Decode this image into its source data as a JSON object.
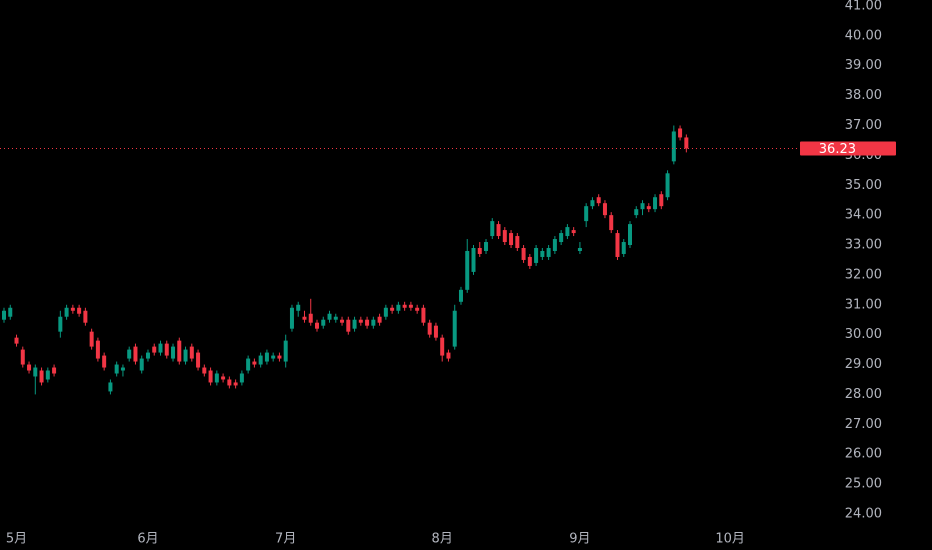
{
  "chart_data": {
    "type": "candlestick",
    "categories": [
      null,
      null,
      "5月",
      null,
      null,
      null,
      null,
      null,
      null,
      null,
      null,
      null,
      null,
      null,
      null,
      null,
      null,
      null,
      null,
      null,
      null,
      null,
      null,
      "6月",
      null,
      null,
      null,
      null,
      null,
      null,
      null,
      null,
      null,
      null,
      null,
      null,
      null,
      null,
      null,
      null,
      null,
      null,
      null,
      null,
      null,
      "7月",
      null,
      null,
      null,
      null,
      null,
      null,
      null,
      null,
      null,
      null,
      null,
      null,
      null,
      null,
      null,
      null,
      null,
      null,
      null,
      null,
      null,
      null,
      null,
      null,
      "8月",
      null,
      null,
      null,
      null,
      null,
      null,
      null,
      null,
      null,
      null,
      null,
      null,
      null,
      null,
      null,
      null,
      null,
      null,
      null,
      null,
      null,
      "9月",
      null,
      null,
      null,
      null,
      null,
      null,
      null,
      null,
      null,
      null,
      null,
      null,
      null,
      null,
      null,
      null,
      null,
      null,
      null,
      null,
      null,
      null,
      null,
      "10月",
      null,
      null,
      null,
      null,
      null,
      null,
      null,
      null,
      null
    ],
    "open": [
      30.5,
      30.6,
      29.9,
      29.5,
      29.0,
      28.6,
      28.8,
      28.5,
      28.9,
      30.1,
      30.6,
      30.9,
      30.9,
      30.8,
      30.1,
      29.8,
      29.3,
      28.1,
      28.7,
      28.8,
      29.2,
      29.6,
      28.8,
      29.2,
      29.6,
      29.4,
      29.7,
      29.2,
      29.8,
      29.1,
      29.6,
      29.4,
      28.9,
      28.8,
      28.4,
      28.6,
      28.5,
      28.4,
      28.4,
      28.8,
      29.1,
      29.0,
      29.1,
      29.2,
      29.3,
      29.1,
      30.2,
      30.8,
      30.6,
      30.7,
      30.4,
      30.3,
      30.5,
      30.5,
      30.5,
      30.5,
      30.2,
      30.5,
      30.5,
      30.3,
      30.6,
      30.6,
      30.9,
      30.8,
      31.0,
      31.0,
      30.9,
      30.9,
      30.4,
      30.3,
      29.9,
      29.4,
      29.6,
      31.1,
      31.5,
      32.1,
      32.9,
      32.8,
      33.3,
      33.7,
      33.5,
      33.4,
      33.3,
      32.9,
      32.6,
      32.4,
      32.6,
      32.6,
      32.8,
      33.1,
      33.3,
      33.5,
      32.8,
      33.8,
      34.3,
      34.6,
      34.4,
      34.0,
      33.4,
      32.7,
      33.0,
      34.0,
      34.2,
      34.3,
      34.2,
      34.7,
      34.6,
      35.8,
      36.9,
      36.6,
      null,
      null,
      null,
      null,
      null,
      null,
      null,
      null,
      null,
      null,
      null,
      null,
      null,
      null,
      null,
      null
    ],
    "high": [
      30.9,
      31.0,
      30.0,
      29.6,
      29.1,
      29.0,
      28.9,
      28.9,
      29.0,
      30.8,
      31.0,
      31.0,
      31.0,
      30.9,
      30.2,
      29.9,
      29.4,
      28.5,
      29.1,
      29.0,
      29.6,
      29.7,
      29.3,
      29.5,
      29.7,
      29.8,
      29.8,
      29.7,
      29.9,
      29.6,
      29.7,
      29.5,
      29.0,
      28.9,
      28.8,
      28.7,
      28.6,
      28.5,
      28.8,
      29.3,
      29.2,
      29.4,
      29.5,
      29.4,
      29.4,
      30.0,
      31.0,
      31.1,
      30.8,
      31.2,
      30.5,
      30.6,
      30.8,
      30.7,
      30.6,
      30.6,
      30.6,
      30.6,
      30.6,
      30.6,
      30.7,
      31.0,
      31.0,
      31.1,
      31.1,
      31.1,
      31.0,
      31.0,
      30.5,
      30.4,
      30.0,
      29.5,
      31.0,
      31.6,
      33.2,
      33.0,
      33.1,
      33.2,
      33.9,
      33.8,
      33.6,
      33.5,
      33.4,
      33.0,
      32.7,
      33.0,
      32.9,
      33.0,
      33.3,
      33.5,
      33.7,
      33.6,
      33.1,
      34.4,
      34.6,
      34.7,
      34.5,
      34.1,
      33.5,
      33.2,
      33.8,
      34.3,
      34.5,
      34.4,
      34.7,
      34.8,
      35.5,
      37.0,
      37.0,
      36.7,
      null,
      null,
      null,
      null,
      null,
      null,
      null,
      null,
      null,
      null,
      null,
      null,
      null,
      null,
      null,
      null
    ],
    "low": [
      30.4,
      30.5,
      29.6,
      28.9,
      28.7,
      28.0,
      28.3,
      28.4,
      28.6,
      29.9,
      30.5,
      30.7,
      30.6,
      30.3,
      29.5,
      29.1,
      28.8,
      28.0,
      28.6,
      28.6,
      29.1,
      29.0,
      28.7,
      29.1,
      29.3,
      29.3,
      29.2,
      29.1,
      29.0,
      29.0,
      29.1,
      28.8,
      28.6,
      28.3,
      28.3,
      28.4,
      28.2,
      28.2,
      28.3,
      28.7,
      28.9,
      28.9,
      29.0,
      29.1,
      29.1,
      28.9,
      30.1,
      30.6,
      30.4,
      30.3,
      30.1,
      30.2,
      30.4,
      30.4,
      30.3,
      30.0,
      30.1,
      30.3,
      30.2,
      30.2,
      30.3,
      30.5,
      30.7,
      30.7,
      30.8,
      30.8,
      30.7,
      30.3,
      29.9,
      29.8,
      29.1,
      29.1,
      29.5,
      31.0,
      31.4,
      32.0,
      32.6,
      32.7,
      33.2,
      33.2,
      33.0,
      32.9,
      32.8,
      32.4,
      32.2,
      32.3,
      32.5,
      32.5,
      32.7,
      33.0,
      33.2,
      33.3,
      32.7,
      33.6,
      34.2,
      34.3,
      33.9,
      33.4,
      32.5,
      32.6,
      32.9,
      33.9,
      34.0,
      34.1,
      34.1,
      34.2,
      34.5,
      35.7,
      36.5,
      36.1,
      null,
      null,
      null,
      null,
      null,
      null,
      null,
      null,
      null,
      null,
      null,
      null,
      null,
      null,
      null,
      null
    ],
    "close": [
      30.8,
      30.9,
      29.7,
      29.0,
      28.8,
      28.9,
      28.4,
      28.8,
      28.7,
      30.6,
      30.9,
      30.8,
      30.7,
      30.4,
      29.6,
      29.2,
      28.9,
      28.4,
      29.0,
      28.9,
      29.5,
      29.1,
      29.2,
      29.4,
      29.4,
      29.7,
      29.3,
      29.6,
      29.1,
      29.5,
      29.2,
      28.9,
      28.7,
      28.4,
      28.7,
      28.5,
      28.3,
      28.3,
      28.7,
      29.2,
      29.0,
      29.3,
      29.4,
      29.3,
      29.2,
      29.8,
      30.9,
      31.0,
      30.5,
      30.4,
      30.2,
      30.5,
      30.7,
      30.6,
      30.4,
      30.1,
      30.5,
      30.4,
      30.3,
      30.5,
      30.4,
      30.9,
      30.8,
      31.0,
      30.9,
      30.9,
      30.8,
      30.4,
      30.0,
      29.9,
      29.3,
      29.2,
      30.8,
      31.5,
      32.8,
      32.9,
      32.7,
      33.1,
      33.8,
      33.3,
      33.1,
      33.0,
      32.9,
      32.5,
      32.3,
      32.9,
      32.8,
      32.9,
      33.2,
      33.4,
      33.6,
      33.4,
      32.9,
      34.3,
      34.5,
      34.4,
      34.0,
      33.5,
      32.6,
      33.1,
      33.7,
      34.2,
      34.4,
      34.2,
      34.6,
      34.3,
      35.4,
      36.8,
      36.6,
      36.23,
      null,
      null,
      null,
      null,
      null,
      null,
      null,
      null,
      null,
      null,
      null,
      null,
      null,
      null,
      null,
      null
    ],
    "up_color": "#089981",
    "down_color": "#f23645",
    "ylim": [
      23.73,
      41.2
    ],
    "yticks": [
      {
        "value": 24,
        "label": "24.00"
      },
      {
        "value": 25,
        "label": "25.00"
      },
      {
        "value": 26,
        "label": "26.00"
      },
      {
        "value": 27,
        "label": "27.00"
      },
      {
        "value": 28,
        "label": "28.00"
      },
      {
        "value": 29,
        "label": "29.00"
      },
      {
        "value": 30,
        "label": "30.00"
      },
      {
        "value": 31,
        "label": "31.00"
      },
      {
        "value": 32,
        "label": "32.00"
      },
      {
        "value": 33,
        "label": "33.00"
      },
      {
        "value": 34,
        "label": "34.00"
      },
      {
        "value": 35,
        "label": "35.00"
      },
      {
        "value": 36,
        "label": "36.00"
      },
      {
        "value": 37,
        "label": "37.00"
      },
      {
        "value": 38,
        "label": "38.00"
      },
      {
        "value": 39,
        "label": "39.00"
      },
      {
        "value": 40,
        "label": "40.00"
      },
      {
        "value": 41,
        "label": "41.00"
      }
    ],
    "grid": false
  }
}
